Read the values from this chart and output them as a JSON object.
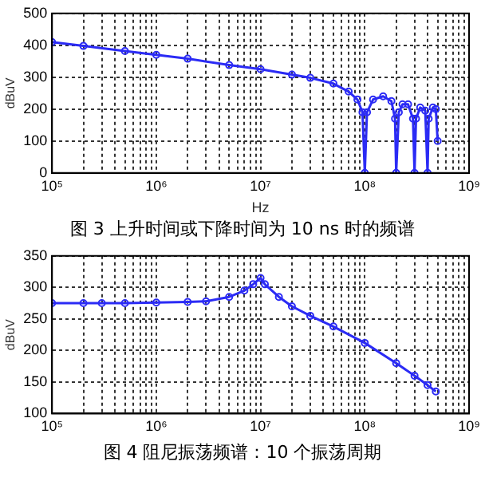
{
  "chart_data": [
    {
      "type": "line",
      "ylabel": "dBuV",
      "xlabel": "Hz",
      "log": "x",
      "grid": true,
      "marker": "circle",
      "xlim": [
        100000,
        1000000000
      ],
      "xticks": [
        {
          "value": 100000,
          "label": "10⁵"
        },
        {
          "value": 200000,
          "label": null
        },
        {
          "value": 300000,
          "label": null
        },
        {
          "value": 400000,
          "label": null
        },
        {
          "value": 500000,
          "label": null
        },
        {
          "value": 600000,
          "label": null
        },
        {
          "value": 700000,
          "label": null
        },
        {
          "value": 800000,
          "label": null
        },
        {
          "value": 900000,
          "label": null
        },
        {
          "value": 1000000,
          "label": "10⁶"
        },
        {
          "value": 2000000,
          "label": null
        },
        {
          "value": 3000000,
          "label": null
        },
        {
          "value": 4000000,
          "label": null
        },
        {
          "value": 5000000,
          "label": null
        },
        {
          "value": 6000000,
          "label": null
        },
        {
          "value": 7000000,
          "label": null
        },
        {
          "value": 8000000,
          "label": null
        },
        {
          "value": 9000000,
          "label": null
        },
        {
          "value": 10000000,
          "label": "10⁷"
        },
        {
          "value": 20000000,
          "label": null
        },
        {
          "value": 30000000,
          "label": null
        },
        {
          "value": 40000000,
          "label": null
        },
        {
          "value": 50000000,
          "label": null
        },
        {
          "value": 60000000,
          "label": null
        },
        {
          "value": 70000000,
          "label": null
        },
        {
          "value": 80000000,
          "label": null
        },
        {
          "value": 90000000,
          "label": null
        },
        {
          "value": 100000000,
          "label": "10⁸"
        },
        {
          "value": 200000000,
          "label": null
        },
        {
          "value": 300000000,
          "label": null
        },
        {
          "value": 400000000,
          "label": null
        },
        {
          "value": 500000000,
          "label": null
        },
        {
          "value": 600000000,
          "label": null
        },
        {
          "value": 700000000,
          "label": null
        },
        {
          "value": 800000000,
          "label": null
        },
        {
          "value": 900000000,
          "label": null
        },
        {
          "value": 1000000000,
          "label": "10⁹"
        }
      ],
      "ylim": [
        0,
        500
      ],
      "yticks": [
        0,
        100,
        200,
        300,
        400,
        500
      ],
      "x": [
        100000,
        200000,
        500000,
        1000000,
        2000000,
        5000000,
        10000000,
        20000000,
        30000000,
        50000000,
        70000000,
        85000000,
        95000000,
        100000000,
        105000000,
        120000000,
        150000000,
        180000000,
        195000000,
        200000000,
        212000000,
        230000000,
        260000000,
        290000000,
        300000000,
        310000000,
        340000000,
        380000000,
        400000000,
        410000000,
        450000000,
        480000000,
        500000000
      ],
      "series": [
        {
          "color": "#2b2bf5",
          "values": [
            410,
            398,
            382,
            370,
            358,
            338,
            325,
            308,
            298,
            280,
            255,
            230,
            190,
            0,
            190,
            230,
            240,
            225,
            170,
            0,
            190,
            215,
            215,
            170,
            0,
            170,
            205,
            195,
            0,
            170,
            205,
            200,
            100
          ]
        }
      ],
      "annotations": [
        "图 3 上升时间或下降时间为 10 ns 时的频谱"
      ]
    },
    {
      "type": "line",
      "ylabel": "dBuV",
      "log": "x",
      "grid": true,
      "marker": "circle",
      "xlim": [
        100000,
        1000000000
      ],
      "xticks": [
        {
          "value": 100000,
          "label": "10⁵"
        },
        {
          "value": 200000,
          "label": null
        },
        {
          "value": 300000,
          "label": null
        },
        {
          "value": 400000,
          "label": null
        },
        {
          "value": 500000,
          "label": null
        },
        {
          "value": 600000,
          "label": null
        },
        {
          "value": 700000,
          "label": null
        },
        {
          "value": 800000,
          "label": null
        },
        {
          "value": 900000,
          "label": null
        },
        {
          "value": 1000000,
          "label": "10⁶"
        },
        {
          "value": 2000000,
          "label": null
        },
        {
          "value": 3000000,
          "label": null
        },
        {
          "value": 4000000,
          "label": null
        },
        {
          "value": 5000000,
          "label": null
        },
        {
          "value": 6000000,
          "label": null
        },
        {
          "value": 7000000,
          "label": null
        },
        {
          "value": 8000000,
          "label": null
        },
        {
          "value": 9000000,
          "label": null
        },
        {
          "value": 10000000,
          "label": "10⁷"
        },
        {
          "value": 20000000,
          "label": null
        },
        {
          "value": 30000000,
          "label": null
        },
        {
          "value": 40000000,
          "label": null
        },
        {
          "value": 50000000,
          "label": null
        },
        {
          "value": 60000000,
          "label": null
        },
        {
          "value": 70000000,
          "label": null
        },
        {
          "value": 80000000,
          "label": null
        },
        {
          "value": 90000000,
          "label": null
        },
        {
          "value": 100000000,
          "label": "10⁸"
        },
        {
          "value": 200000000,
          "label": null
        },
        {
          "value": 300000000,
          "label": null
        },
        {
          "value": 400000000,
          "label": null
        },
        {
          "value": 500000000,
          "label": null
        },
        {
          "value": 600000000,
          "label": null
        },
        {
          "value": 700000000,
          "label": null
        },
        {
          "value": 800000000,
          "label": null
        },
        {
          "value": 900000000,
          "label": null
        },
        {
          "value": 1000000000,
          "label": "10⁹"
        }
      ],
      "ylim": [
        100,
        350
      ],
      "yticks": [
        100,
        150,
        200,
        250,
        300,
        350
      ],
      "x": [
        100000,
        200000,
        300000,
        500000,
        1000000,
        2000000,
        3000000,
        5000000,
        7000000,
        8500000,
        10000000,
        11000000,
        15000000,
        20000000,
        30000000,
        50000000,
        100000000,
        200000000,
        300000000,
        400000000,
        480000000
      ],
      "series": [
        {
          "color": "#2b2bf5",
          "values": [
            275,
            275,
            275,
            275,
            276,
            277,
            278,
            285,
            295,
            305,
            315,
            305,
            285,
            270,
            255,
            238,
            212,
            180,
            160,
            145,
            135
          ]
        }
      ],
      "annotations": [
        "图 4 阻尼振荡频谱：10 个振荡周期"
      ]
    }
  ]
}
